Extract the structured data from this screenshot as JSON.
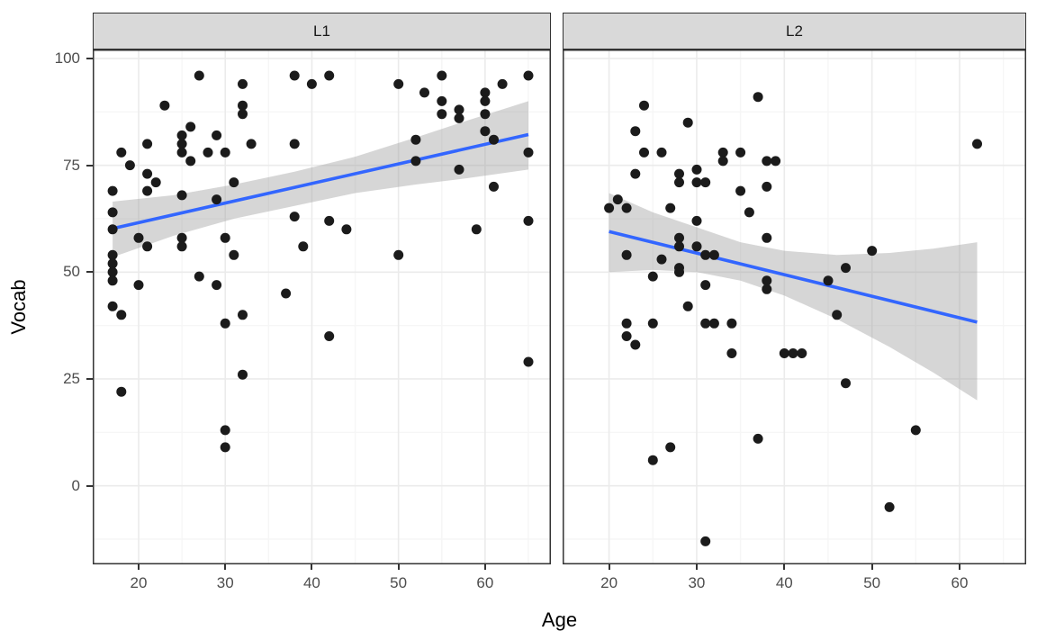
{
  "figure": {
    "y_axis_title": "Vocab",
    "x_axis_title": "Age",
    "colors": {
      "smooth_line": "#3366FF",
      "confidence_band": "rgba(153,153,153,0.40)",
      "point": "#1b1b1b",
      "strip_fill": "#d9d9d9",
      "strip_border": "#333333",
      "panel_border": "#333333",
      "panel_background": "#ffffff",
      "grid_major": "#ebebeb",
      "grid_minor": "#f6f6f6",
      "tick_mark": "#333333",
      "tick_label": "#4d4d4d",
      "axis_title": "#000000"
    }
  },
  "chart_data": {
    "type": "scatter",
    "title": "",
    "xlabel": "Age",
    "ylabel": "Vocab",
    "grid": true,
    "legend": "none",
    "x_domain": [
      14.7,
      67.6
    ],
    "y_domain": [
      -18.4,
      102.1
    ],
    "x_ticks": [
      20,
      30,
      40,
      50,
      60
    ],
    "y_ticks": [
      0,
      25,
      50,
      75,
      100
    ],
    "x_minor_ticks": [
      15,
      25,
      35,
      45,
      55,
      65
    ],
    "y_minor_ticks": [
      -12.5,
      12.5,
      37.5,
      62.5,
      87.5
    ],
    "point_radius": 5.5,
    "facets": [
      {
        "label": "L1",
        "smooth": {
          "x1": 17,
          "y1": 60.2,
          "x2": 65,
          "y2": 82.2
        },
        "band": {
          "x": [
            17,
            24,
            31,
            38,
            45,
            52,
            58,
            65
          ],
          "top": [
            66.5,
            68,
            70.5,
            73.5,
            77,
            81.5,
            85.5,
            90
          ],
          "bottom": [
            53.5,
            58.5,
            62.5,
            65.5,
            68.5,
            70.5,
            72,
            74
          ]
        },
        "points": [
          [
            17,
            69
          ],
          [
            17,
            64
          ],
          [
            17,
            60
          ],
          [
            17,
            54
          ],
          [
            17,
            52
          ],
          [
            17,
            50
          ],
          [
            17,
            48
          ],
          [
            17,
            42
          ],
          [
            18,
            78
          ],
          [
            18,
            40
          ],
          [
            18,
            22
          ],
          [
            19,
            75
          ],
          [
            20,
            58
          ],
          [
            20,
            47
          ],
          [
            21,
            80
          ],
          [
            21,
            73
          ],
          [
            21,
            69
          ],
          [
            21,
            56
          ],
          [
            22,
            71
          ],
          [
            23,
            89
          ],
          [
            25,
            82
          ],
          [
            25,
            80
          ],
          [
            25,
            78
          ],
          [
            25,
            68
          ],
          [
            25,
            58
          ],
          [
            25,
            56
          ],
          [
            26,
            84
          ],
          [
            26,
            76
          ],
          [
            27,
            96
          ],
          [
            27,
            49
          ],
          [
            28,
            78
          ],
          [
            29,
            82
          ],
          [
            29,
            67
          ],
          [
            29,
            47
          ],
          [
            30,
            78
          ],
          [
            30,
            58
          ],
          [
            30,
            38
          ],
          [
            30,
            13
          ],
          [
            30,
            9
          ],
          [
            31,
            71
          ],
          [
            31,
            54
          ],
          [
            32,
            94
          ],
          [
            32,
            89
          ],
          [
            32,
            87
          ],
          [
            32,
            40
          ],
          [
            32,
            26
          ],
          [
            33,
            80
          ],
          [
            37,
            45
          ],
          [
            38,
            96
          ],
          [
            38,
            80
          ],
          [
            38,
            63
          ],
          [
            39,
            56
          ],
          [
            40,
            94
          ],
          [
            42,
            96
          ],
          [
            42,
            62
          ],
          [
            42,
            35
          ],
          [
            44,
            60
          ],
          [
            50,
            94
          ],
          [
            50,
            54
          ],
          [
            52,
            81
          ],
          [
            52,
            76
          ],
          [
            53,
            92
          ],
          [
            55,
            96
          ],
          [
            55,
            90
          ],
          [
            55,
            87
          ],
          [
            57,
            88
          ],
          [
            57,
            86
          ],
          [
            57,
            74
          ],
          [
            59,
            60
          ],
          [
            60,
            92
          ],
          [
            60,
            90
          ],
          [
            60,
            87
          ],
          [
            60,
            83
          ],
          [
            61,
            81
          ],
          [
            61,
            70
          ],
          [
            62,
            94
          ],
          [
            65,
            96
          ],
          [
            65,
            78
          ],
          [
            65,
            62
          ],
          [
            65,
            29
          ]
        ]
      },
      {
        "label": "L2",
        "smooth": {
          "x1": 20,
          "y1": 59.5,
          "x2": 62,
          "y2": 38.3
        },
        "band": {
          "x": [
            20,
            25,
            30,
            35,
            40,
            46,
            52,
            57,
            62
          ],
          "top": [
            68.5,
            64,
            60.5,
            57,
            55,
            54,
            54.5,
            55.5,
            57
          ],
          "bottom": [
            50,
            50.5,
            50,
            48,
            44.5,
            39,
            32.5,
            26.5,
            20
          ]
        },
        "points": [
          [
            20,
            65
          ],
          [
            21,
            67
          ],
          [
            22,
            65
          ],
          [
            22,
            54
          ],
          [
            22,
            38
          ],
          [
            22,
            35
          ],
          [
            23,
            83
          ],
          [
            23,
            73
          ],
          [
            23,
            33
          ],
          [
            24,
            89
          ],
          [
            24,
            78
          ],
          [
            25,
            49
          ],
          [
            25,
            38
          ],
          [
            25,
            6
          ],
          [
            26,
            78
          ],
          [
            26,
            53
          ],
          [
            27,
            65
          ],
          [
            27,
            9
          ],
          [
            28,
            73
          ],
          [
            28,
            71
          ],
          [
            28,
            58
          ],
          [
            28,
            56
          ],
          [
            28,
            51
          ],
          [
            28,
            50
          ],
          [
            29,
            85
          ],
          [
            29,
            42
          ],
          [
            30,
            74
          ],
          [
            30,
            71
          ],
          [
            30,
            62
          ],
          [
            30,
            56
          ],
          [
            31,
            71
          ],
          [
            31,
            54
          ],
          [
            31,
            47
          ],
          [
            31,
            38
          ],
          [
            31,
            -13
          ],
          [
            32,
            54
          ],
          [
            32,
            38
          ],
          [
            33,
            78
          ],
          [
            33,
            76
          ],
          [
            34,
            38
          ],
          [
            34,
            31
          ],
          [
            35,
            78
          ],
          [
            35,
            69
          ],
          [
            36,
            64
          ],
          [
            37,
            91
          ],
          [
            37,
            11
          ],
          [
            38,
            76
          ],
          [
            38,
            70
          ],
          [
            38,
            58
          ],
          [
            38,
            48
          ],
          [
            38,
            46
          ],
          [
            39,
            76
          ],
          [
            40,
            31
          ],
          [
            41,
            31
          ],
          [
            42,
            31
          ],
          [
            45,
            48
          ],
          [
            46,
            40
          ],
          [
            47,
            51
          ],
          [
            47,
            24
          ],
          [
            50,
            55
          ],
          [
            52,
            -5
          ],
          [
            55,
            13
          ],
          [
            62,
            80
          ]
        ]
      }
    ]
  }
}
